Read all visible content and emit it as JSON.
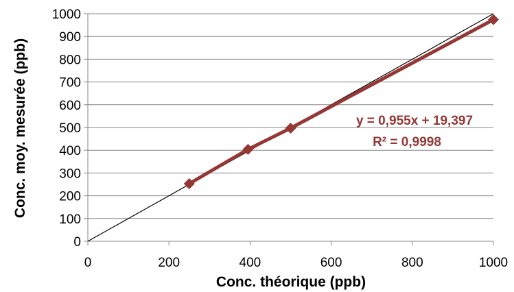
{
  "chart_data": {
    "type": "scatter",
    "xlabel": "Conc. théorique (ppb)",
    "ylabel": "Conc. moy. mesurée (ppb)",
    "xlim": [
      0,
      1000
    ],
    "ylim": [
      0,
      1000
    ],
    "x_ticks": [
      "0",
      "200",
      "400",
      "600",
      "800",
      "1000"
    ],
    "y_ticks": [
      "0",
      "100",
      "200",
      "300",
      "400",
      "500",
      "600",
      "700",
      "800",
      "900",
      "1000"
    ],
    "grid": "horizontal",
    "legend": "none",
    "series": [
      {
        "color": "#953735",
        "marker": "diamond",
        "points": [
          {
            "x": 250,
            "y": 253
          },
          {
            "x": 395,
            "y": 404
          },
          {
            "x": 500,
            "y": 497
          },
          {
            "x": 1000,
            "y": 974
          }
        ]
      }
    ],
    "reference_line": {
      "color": "#000000",
      "from": [
        0,
        0
      ],
      "to": [
        1000,
        1000
      ]
    },
    "trendline": {
      "color": "#953735",
      "slope": 0.955,
      "intercept": 19.397,
      "x_range": [
        250,
        1000
      ]
    },
    "annotations": [
      {
        "text": "y = 0,955x + 19,397",
        "color": "#953735"
      },
      {
        "text": "R² = 0,9998",
        "color": "#953735"
      }
    ]
  }
}
